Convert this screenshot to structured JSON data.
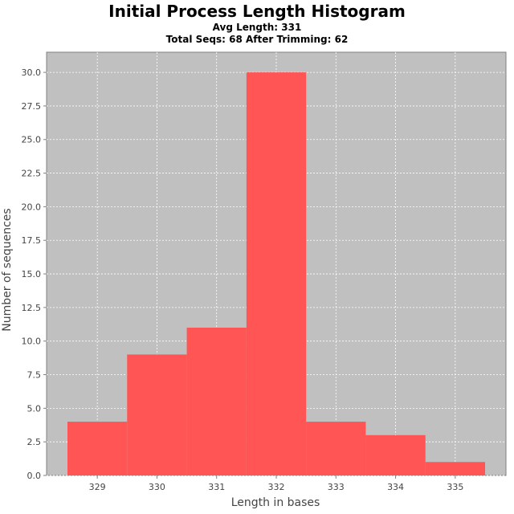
{
  "chart_data": {
    "type": "bar",
    "title": "Initial Process Length Histogram",
    "subtitles": [
      "Avg Length: 331",
      "Total Seqs: 68 After Trimming: 62"
    ],
    "xlabel": "Length in bases",
    "ylabel": "Number of sequences",
    "categories": [
      "329",
      "330",
      "331",
      "332",
      "333",
      "334",
      "335"
    ],
    "values": [
      4,
      9,
      11,
      30,
      4,
      3,
      1
    ],
    "x_ticks": [
      "329",
      "330",
      "331",
      "332",
      "333",
      "334",
      "335"
    ],
    "y_ticks": [
      "0.0",
      "2.5",
      "5.0",
      "7.5",
      "10.0",
      "12.5",
      "15.0",
      "17.5",
      "20.0",
      "22.5",
      "25.0",
      "27.5",
      "30.0"
    ],
    "xlim": [
      328.15,
      335.85
    ],
    "ylim": [
      0,
      31.5
    ],
    "grid": true,
    "legend": "none",
    "colors": {
      "bar": "#ff5555",
      "plot_background": "#c0c0c0",
      "grid": "#ffffff"
    }
  }
}
